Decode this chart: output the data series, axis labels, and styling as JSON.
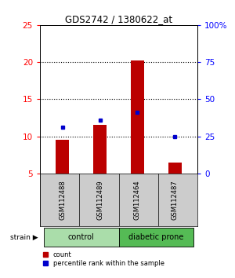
{
  "title": "GDS2742 / 1380622_at",
  "samples": [
    "GSM112488",
    "GSM112489",
    "GSM112464",
    "GSM112487"
  ],
  "counts": [
    9.5,
    11.5,
    20.2,
    6.5
  ],
  "percentiles_pct": [
    31,
    36,
    41,
    25
  ],
  "bar_color": "#bb0000",
  "dot_color": "#0000cc",
  "ylim_left": [
    5,
    25
  ],
  "ylim_right": [
    0,
    100
  ],
  "yticks_left": [
    5,
    10,
    15,
    20,
    25
  ],
  "yticks_right": [
    0,
    25,
    50,
    75,
    100
  ],
  "ytick_labels_right": [
    "0",
    "25",
    "50",
    "75",
    "100%"
  ],
  "grid_lines": [
    10,
    15,
    20
  ],
  "groups": [
    {
      "label": "control",
      "samples": [
        0,
        1
      ],
      "color": "#aaddaa"
    },
    {
      "label": "diabetic prone",
      "samples": [
        2,
        3
      ],
      "color": "#55bb55"
    }
  ],
  "strain_label": "strain",
  "legend_count_label": "count",
  "legend_percentile_label": "percentile rank within the sample",
  "bg_color": "#ffffff",
  "sample_box_color": "#cccccc",
  "bar_width": 0.35
}
